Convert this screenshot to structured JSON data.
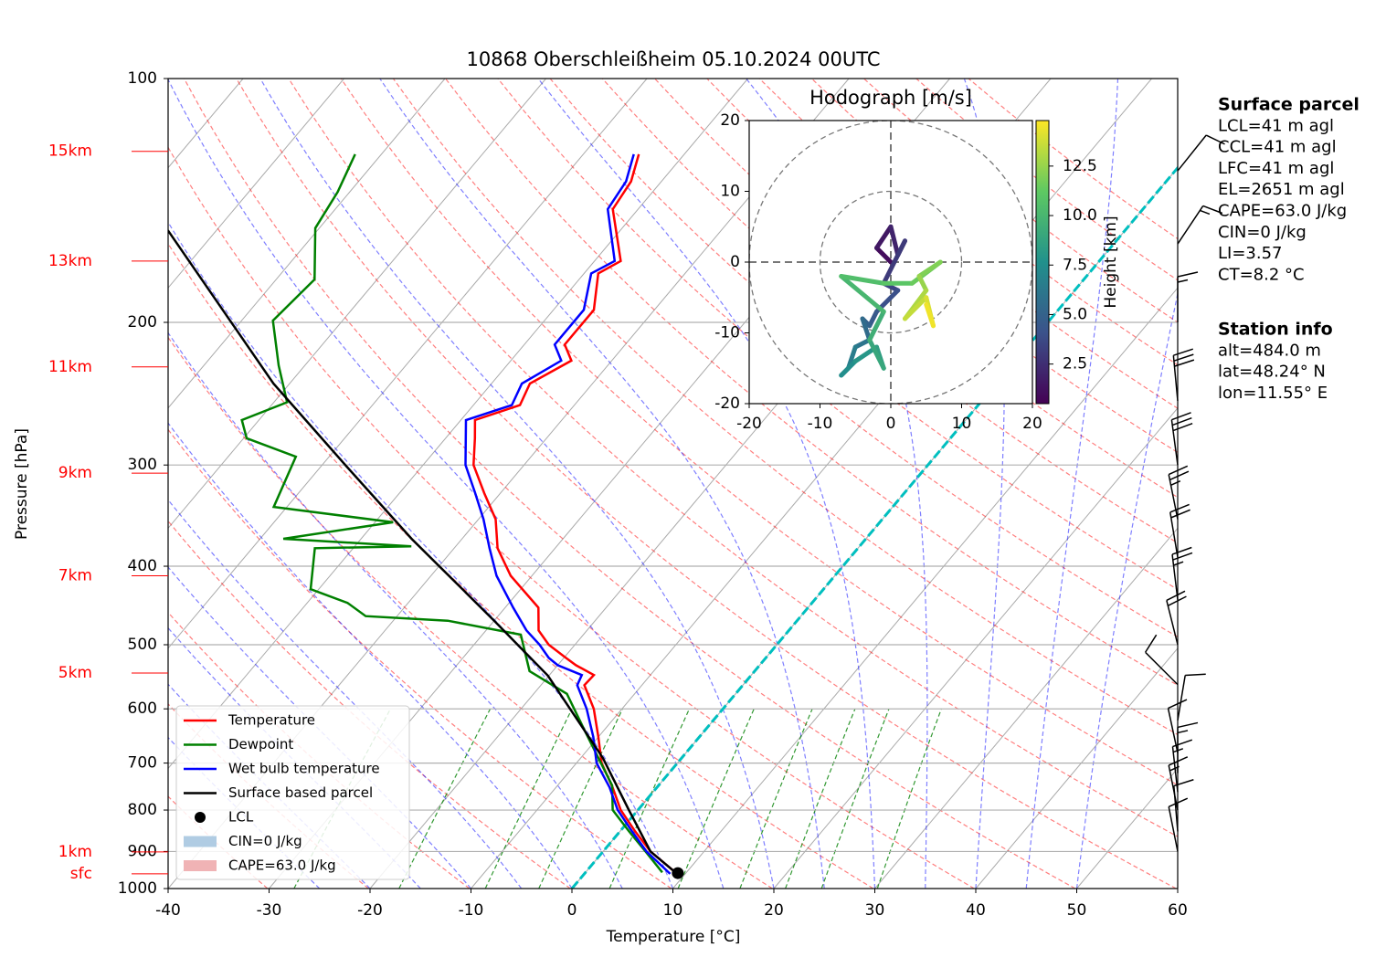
{
  "chart_data": {
    "type": "skewt",
    "title": "10868 Oberschleißheim 05.10.2024 00UTC",
    "xlabel": "Temperature [°C]",
    "ylabel": "Pressure [hPa]",
    "xlim": [
      -40,
      60
    ],
    "xticks": [
      -40,
      -30,
      -20,
      -10,
      0,
      10,
      20,
      30,
      40,
      50,
      60
    ],
    "ylim": [
      1000,
      100
    ],
    "yticks": [
      100,
      200,
      300,
      400,
      500,
      600,
      700,
      800,
      900,
      1000
    ],
    "yscale": "log",
    "grid": true,
    "zero_isotherm": {
      "value": 0,
      "color": "#00bfbf"
    },
    "series": [
      {
        "name": "Temperature",
        "color": "#ff0000",
        "pressure": [
          959,
          900,
          850,
          800,
          750,
          700,
          650,
          600,
          561,
          545,
          530,
          519,
          500,
          480,
          450,
          411,
          380,
          350,
          325,
          300,
          278,
          264,
          253,
          238,
          223,
          213,
          193,
          174,
          168,
          145,
          134,
          124
        ],
        "values": [
          9.2,
          4.7,
          1.5,
          -1.7,
          -4.4,
          -7.5,
          -10.0,
          -12.8,
          -15.7,
          -15.6,
          -18.2,
          -19.8,
          -22.6,
          -24.8,
          -26.7,
          -32.1,
          -35.7,
          -38.3,
          -41.6,
          -45.0,
          -47.1,
          -48.6,
          -45.4,
          -46.2,
          -44.0,
          -46.0,
          -46.0,
          -48.6,
          -47.4,
          -52.5,
          -53.0,
          -54.5
        ]
      },
      {
        "name": "Dewpoint",
        "color": "#008000",
        "pressure": [
          955,
          900,
          850,
          800,
          746,
          638,
          575,
          539,
          486,
          467,
          461,
          444,
          427,
          380,
          378,
          370,
          353,
          338,
          293,
          278,
          264,
          251,
          226,
          199,
          177,
          153,
          138,
          124
        ],
        "values": [
          7.6,
          4.2,
          0.9,
          -2.5,
          -4.6,
          -11.9,
          -16.7,
          -22.3,
          -26.2,
          -34.6,
          -43.1,
          -46.0,
          -50.8,
          -53.8,
          -44.4,
          -57.7,
          -48.2,
          -61.3,
          -63.3,
          -69.7,
          -71.7,
          -68.7,
          -72.6,
          -76.9,
          -76.2,
          -80.4,
          -81.2,
          -82.6
        ]
      },
      {
        "name": "Wet bulb temperature",
        "color": "#0000ff",
        "pressure": [
          959,
          900,
          850,
          800,
          750,
          700,
          650,
          600,
          561,
          545,
          530,
          519,
          500,
          480,
          450,
          411,
          380,
          350,
          325,
          300,
          278,
          264,
          253,
          238,
          223,
          213,
          193,
          174,
          168,
          145,
          134,
          124
        ],
        "values": [
          8.5,
          4.3,
          1.2,
          -2.0,
          -4.7,
          -8.0,
          -10.5,
          -13.5,
          -16.4,
          -16.8,
          -20.0,
          -21.5,
          -23.5,
          -26.0,
          -29.2,
          -33.5,
          -36.5,
          -39.5,
          -42.5,
          -45.8,
          -48.0,
          -49.5,
          -46.2,
          -47.0,
          -45.0,
          -47.0,
          -47.0,
          -49.3,
          -48.0,
          -53.0,
          -53.5,
          -55.0
        ]
      },
      {
        "name": "Surface based parcel",
        "color": "#000000",
        "pressure": [
          959,
          900,
          800,
          690,
          546,
          467,
          370,
          301,
          238,
          154
        ],
        "values": [
          9.2,
          4.7,
          -0.9,
          -7.8,
          -20.1,
          -30.0,
          -45.0,
          -57.5,
          -71.6,
          -94.8
        ]
      }
    ],
    "lcl": {
      "name": "LCL",
      "pressure": 957,
      "temperature": 9.2,
      "color": "#000000"
    },
    "shading": [
      {
        "name": "CIN=0 J/kg",
        "color": "#b0cce3"
      },
      {
        "name": "CAPE=63.0 J/kg",
        "color": "#f0b3b5"
      }
    ],
    "height_labels": {
      "color": "#ff0000",
      "labels": [
        "15km",
        "13km",
        "11km",
        "9km",
        "7km",
        "5km",
        "1km",
        "sfc"
      ],
      "pressure": [
        123,
        168,
        227,
        307,
        411,
        542,
        901,
        959
      ]
    },
    "barbs": {
      "pressure": [
        900,
        850,
        800,
        760,
        720,
        680,
        620,
        560,
        500,
        440,
        390,
        350,
        300,
        250,
        200,
        160,
        130
      ],
      "u": [
        2,
        1,
        3,
        2,
        0,
        3,
        -2,
        10,
        5,
        3,
        4,
        5,
        4,
        3,
        0,
        -10,
        -8
      ],
      "v": [
        -10,
        -12,
        -15,
        -18,
        -15,
        -14,
        -12,
        -10,
        -20,
        -25,
        -24,
        -25,
        -30,
        -32,
        -15,
        -15,
        -10
      ]
    },
    "hodograph": {
      "title": "Hodograph [m/s]",
      "xlim": [
        -20,
        20
      ],
      "ylim": [
        -20,
        20
      ],
      "xticks": [
        -20,
        -10,
        0,
        10,
        20
      ],
      "yticks": [
        -20,
        -10,
        0,
        10,
        20
      ],
      "u": [
        0,
        -2,
        0,
        1,
        2,
        -1,
        1,
        -2,
        -3,
        -4,
        -3,
        -5,
        -6,
        -7,
        -5,
        -2,
        -1,
        -3,
        -1,
        -7,
        -1,
        3,
        7,
        4,
        5,
        2,
        5,
        6,
        5
      ],
      "v": [
        0,
        2,
        5,
        1,
        3,
        -3,
        -4,
        -7,
        -9,
        -8,
        -11,
        -12,
        -15,
        -16,
        -14,
        -12,
        -15,
        -11,
        -7,
        -2,
        -3,
        -3,
        0,
        -2,
        -4,
        -8,
        -5,
        -9,
        -6
      ],
      "height": [
        0.5,
        1.0,
        1.5,
        2.0,
        2.5,
        3.0,
        3.5,
        4.0,
        4.5,
        5.0,
        5.5,
        6.0,
        6.5,
        7.0,
        7.5,
        8.0,
        8.5,
        9.0,
        9.5,
        10.0,
        10.5,
        11.0,
        11.5,
        12.0,
        12.5,
        13.0,
        13.5,
        14.0,
        14.5
      ],
      "colorbar": {
        "label": "Height [km]",
        "lim": [
          0.5,
          14.8
        ],
        "ticks": [
          2.5,
          {
            "value": 5,
            "label": "5.0"
          },
          7.5,
          {
            "value": 10,
            "label": "10.0"
          },
          12.5
        ]
      }
    },
    "surface_parcel": {
      "title": "Surface parcel",
      "lines": [
        "LCL=41 m agl",
        "CCL=41 m agl",
        "LFC=41 m agl",
        "EL=2651 m agl",
        "CAPE=63.0 J/kg",
        "CIN=0 J/kg",
        "LI=3.57",
        "CT=8.2 °C"
      ]
    },
    "station_info": {
      "title": "Station info",
      "lines": [
        "alt=484.0 m",
        "lat=48.24° N",
        "lon=11.55° E"
      ]
    }
  }
}
